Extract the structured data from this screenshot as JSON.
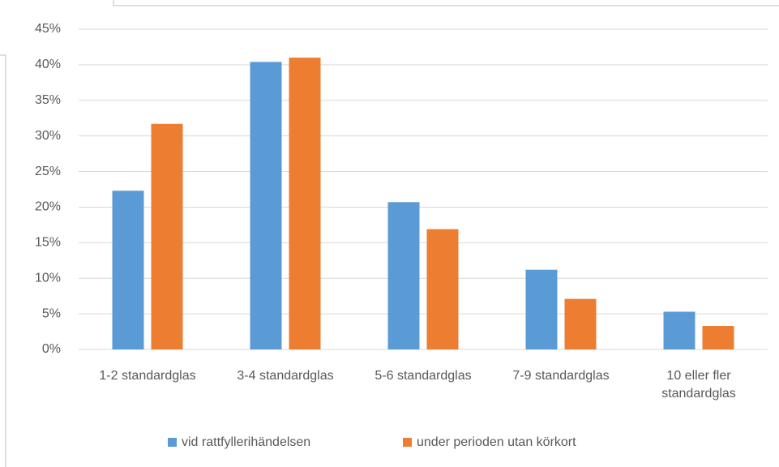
{
  "chart_data": {
    "type": "bar",
    "categories": [
      "1-2 standardglas",
      "3-4 standardglas",
      "5-6 standardglas",
      "7-9 standardglas",
      "10 eller fler standardglas"
    ],
    "series": [
      {
        "name": "vid rattfyllerihändelsen",
        "color": "#5b9bd5",
        "values": [
          22.3,
          40.4,
          20.7,
          11.2,
          5.3
        ]
      },
      {
        "name": "under perioden utan körkort",
        "color": "#ed7d31",
        "values": [
          31.7,
          41.0,
          16.9,
          7.1,
          3.3
        ]
      }
    ],
    "ylim": [
      0,
      45
    ],
    "yticks": [
      {
        "value": 0,
        "label": "0%"
      },
      {
        "value": 5,
        "label": "5%"
      },
      {
        "value": 10,
        "label": "10%"
      },
      {
        "value": 15,
        "label": "15%"
      },
      {
        "value": 20,
        "label": "20%"
      },
      {
        "value": 25,
        "label": "25%"
      },
      {
        "value": 30,
        "label": "30%"
      },
      {
        "value": 35,
        "label": "35%"
      },
      {
        "value": 40,
        "label": "40%"
      },
      {
        "value": 45,
        "label": "45%"
      }
    ],
    "grid": true,
    "legend": "bottom"
  }
}
